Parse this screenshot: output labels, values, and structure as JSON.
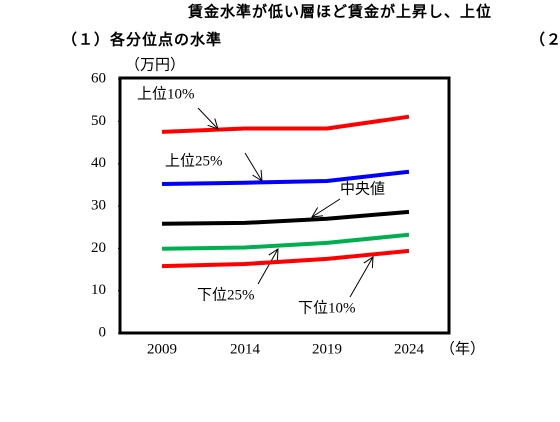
{
  "chart_data": {
    "type": "line",
    "title": "賃金水準が低い層ほど賃金が上昇し、上位",
    "subtitle": "（１）各分位点の水準",
    "subtitle_right": "（２",
    "y_label": "（万円）",
    "x_label": "（年）",
    "categories": [
      "2009",
      "2014",
      "2019",
      "2024"
    ],
    "series": [
      {
        "name": "上位10%",
        "color": "#ff0000",
        "values": [
          47.5,
          48.3,
          48.3,
          51.1
        ]
      },
      {
        "name": "上位25%",
        "color": "#0000ff",
        "values": [
          35.2,
          35.5,
          35.9,
          38.1
        ]
      },
      {
        "name": "中央値",
        "color": "#000000",
        "values": [
          25.8,
          26.0,
          27.0,
          28.6
        ]
      },
      {
        "name": "下位25%",
        "color": "#00b050",
        "values": [
          19.9,
          20.2,
          21.3,
          23.2
        ]
      },
      {
        "name": "下位10%",
        "color": "#ff0000",
        "values": [
          15.8,
          16.3,
          17.5,
          19.4
        ]
      }
    ],
    "ylim": [
      0,
      60
    ],
    "yticks": [
      0,
      10,
      20,
      30,
      40,
      50,
      60
    ],
    "grid": false
  }
}
